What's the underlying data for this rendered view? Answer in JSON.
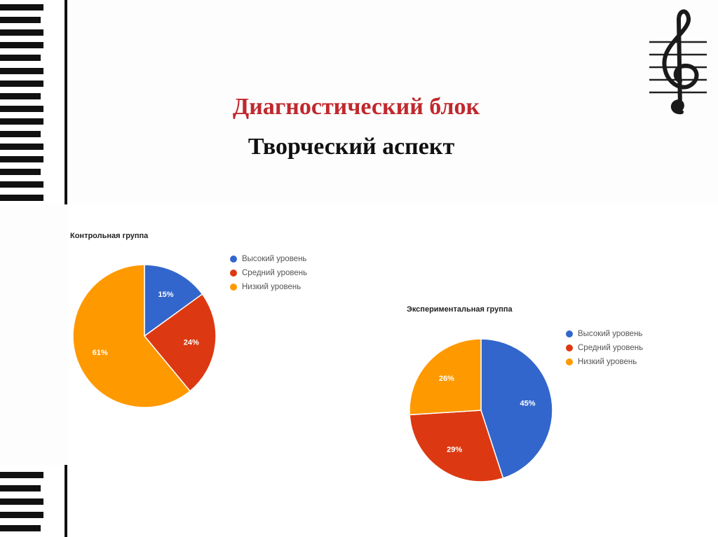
{
  "slide": {
    "title": "Диагностический блок",
    "subtitle": "Творческий аспект"
  },
  "colors": {
    "high": "#3366cc",
    "medium": "#dc3912",
    "low": "#ff9900",
    "title_red": "#c0282d"
  },
  "decor": {
    "left_icon": "piano-keys-icon",
    "right_icon": "treble-clef-icon"
  },
  "chart_data": [
    {
      "type": "pie",
      "title": "Контрольная группа",
      "legend_position": "right",
      "categories": [
        "Высокий уровень",
        "Средний уровень",
        "Низкий уровень"
      ],
      "values": [
        15,
        24,
        61
      ],
      "labels": [
        "15%",
        "24%",
        "61%"
      ]
    },
    {
      "type": "pie",
      "title": "Экспериментальная группа",
      "legend_position": "right",
      "categories": [
        "Высокий уровень",
        "Средний уровень",
        "Низкий уровень"
      ],
      "values": [
        45,
        29,
        26
      ],
      "labels": [
        "45%",
        "29%",
        "26%"
      ]
    }
  ]
}
